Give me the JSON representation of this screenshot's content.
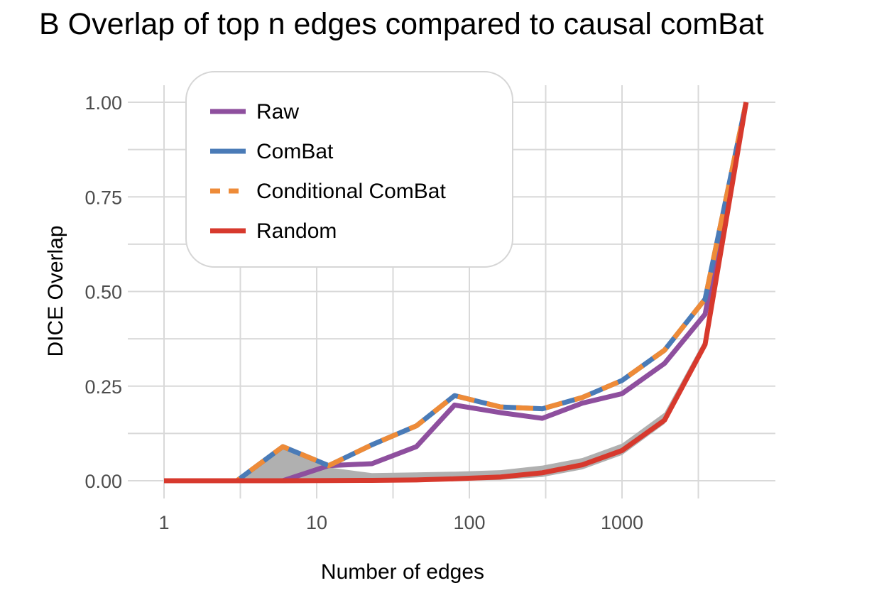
{
  "chart_data": {
    "type": "line",
    "title": "B  Overlap of top n edges compared to causal comBat",
    "xlabel": "Number of edges",
    "ylabel": "DICE Overlap",
    "xscale": "log10",
    "xlim": [
      1,
      8000
    ],
    "ylim": [
      0,
      1
    ],
    "x_ticks": [
      1,
      10,
      100,
      1000
    ],
    "x_tick_labels": [
      "1",
      "10",
      "100",
      "1000"
    ],
    "y_ticks": [
      0,
      0.25,
      0.5,
      0.75,
      1.0
    ],
    "y_tick_labels": [
      "0.00",
      "0.25",
      "0.50",
      "0.75",
      "1.00"
    ],
    "grid": true,
    "legend_position": "top-left",
    "x": [
      1,
      3,
      6,
      12,
      23,
      45,
      80,
      160,
      300,
      550,
      1000,
      1900,
      3500,
      6500
    ],
    "series": [
      {
        "name": "Raw",
        "color": "#8e4f9e",
        "dashed": false,
        "values": [
          0,
          0,
          0,
          0.04,
          0.045,
          0.09,
          0.2,
          0.18,
          0.165,
          0.205,
          0.23,
          0.31,
          0.44,
          1.0
        ]
      },
      {
        "name": "ComBat",
        "color": "#4a7bb7",
        "dashed": false,
        "values": [
          0,
          0,
          0.09,
          0.04,
          0.095,
          0.145,
          0.225,
          0.195,
          0.19,
          0.22,
          0.265,
          0.345,
          0.48,
          1.0
        ]
      },
      {
        "name": "Conditional ComBat",
        "color": "#ee8b38",
        "dashed": true,
        "values": [
          0,
          0,
          0.09,
          0.04,
          0.095,
          0.145,
          0.225,
          0.195,
          0.19,
          0.22,
          0.265,
          0.345,
          0.48,
          1.0
        ]
      },
      {
        "name": "Random",
        "color": "#d7392d",
        "dashed": false,
        "values": [
          0,
          0,
          0,
          0.0005,
          0.001,
          0.002,
          0.005,
          0.01,
          0.021,
          0.042,
          0.08,
          0.16,
          0.36,
          1.0
        ]
      }
    ],
    "random_band": {
      "color": "#b0b0b0",
      "x": [
        1,
        3,
        6,
        12,
        23,
        45,
        80,
        160,
        300,
        550,
        1000,
        1900,
        3500,
        6500
      ],
      "lower": [
        0,
        0,
        0,
        0,
        0,
        0,
        0,
        0.002,
        0.01,
        0.03,
        0.068,
        0.15,
        0.35,
        1.0
      ],
      "upper": [
        0,
        0,
        0.085,
        0.035,
        0.02,
        0.022,
        0.024,
        0.028,
        0.04,
        0.06,
        0.098,
        0.18,
        0.375,
        1.0
      ]
    }
  }
}
